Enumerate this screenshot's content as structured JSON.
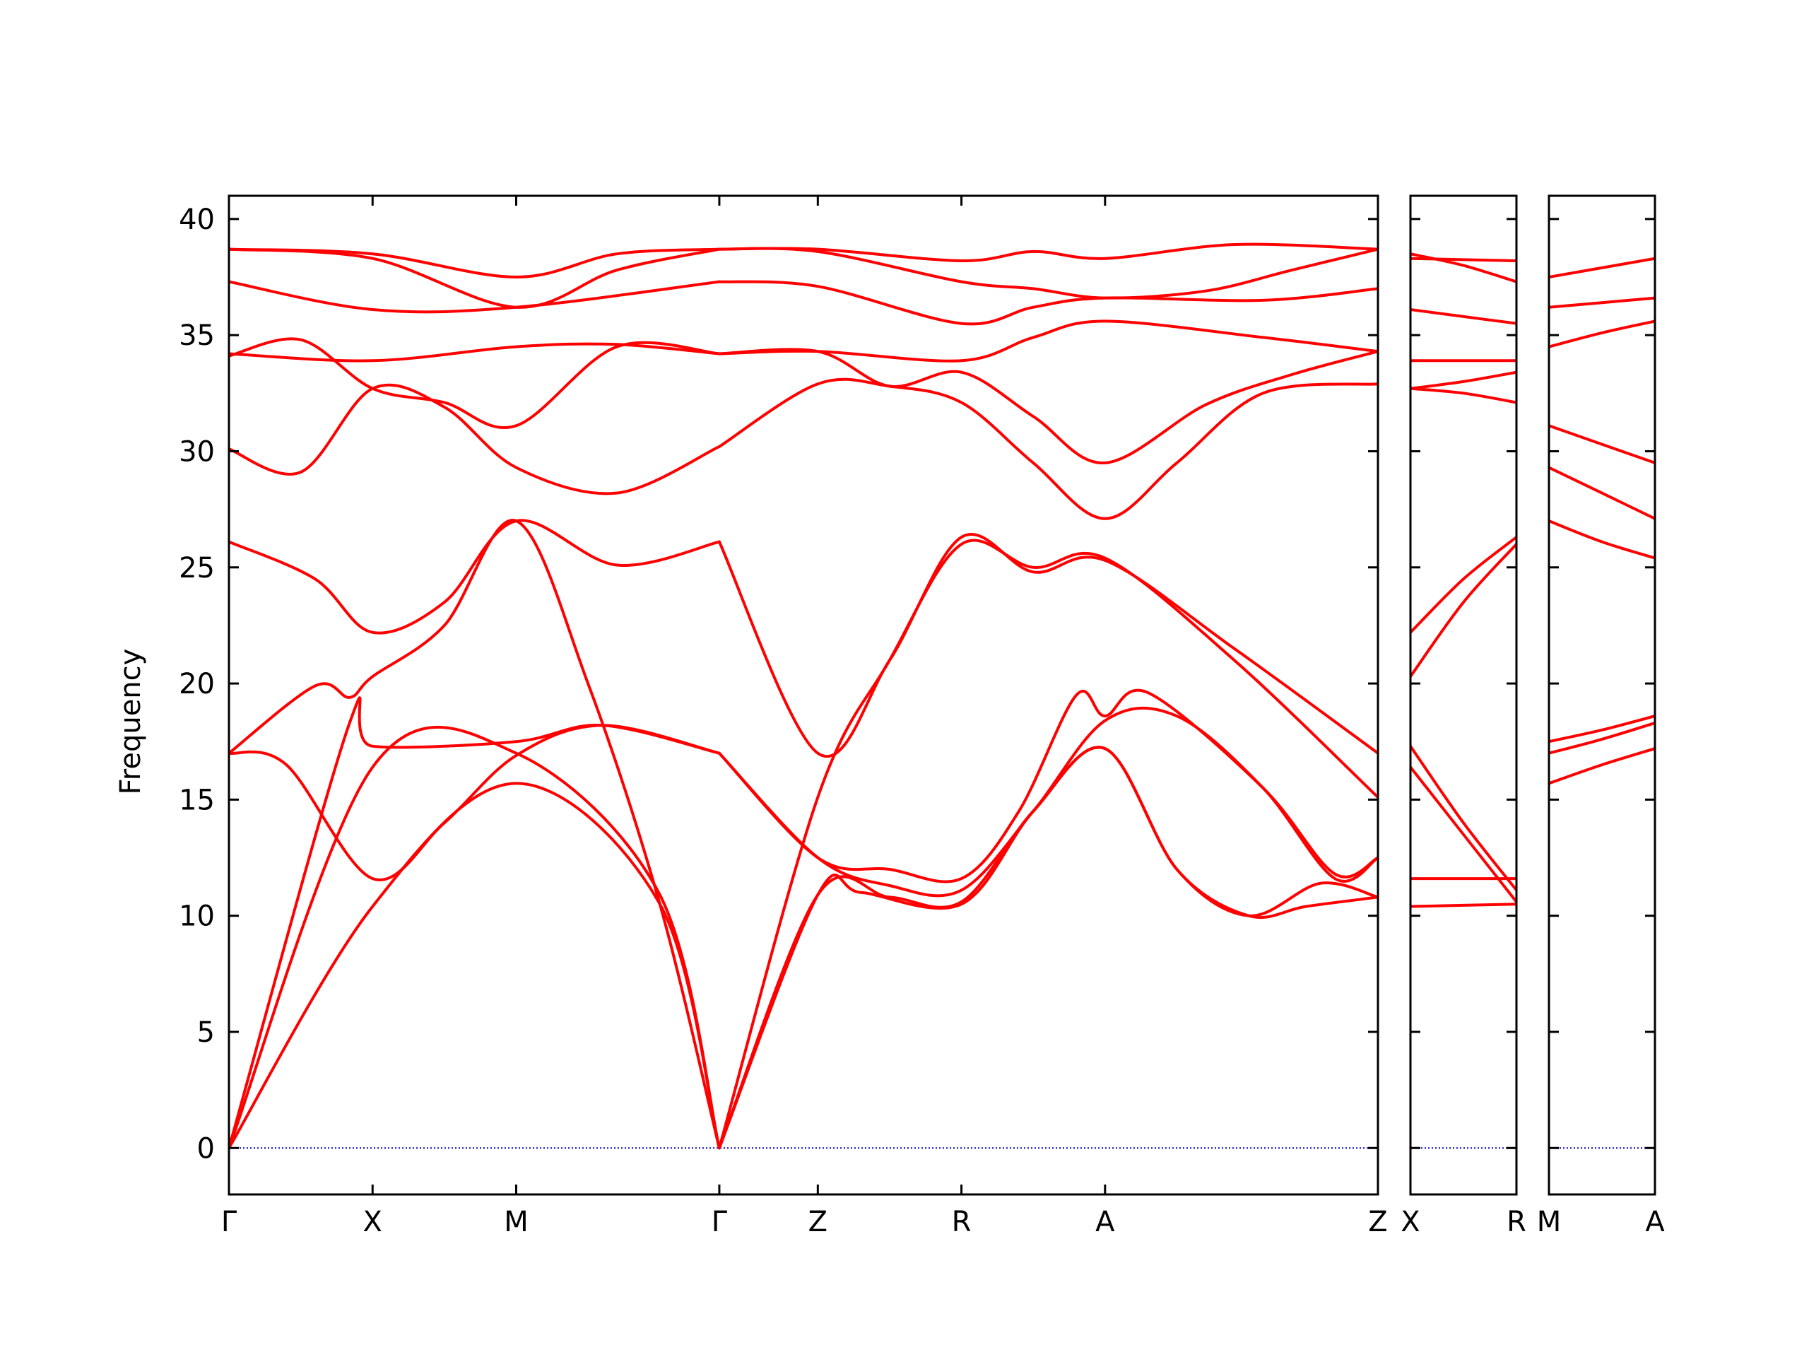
{
  "chart_data": {
    "type": "line",
    "ylabel": "Frequency",
    "ylim": [
      -2,
      41
    ],
    "yticks": [
      0,
      5,
      10,
      15,
      20,
      25,
      30,
      35,
      40
    ],
    "grid": false,
    "legend": "none",
    "colors": {
      "bands": "#ff0000",
      "zero_line": "#0000cc",
      "axes": "#000000"
    },
    "segment_labels": [
      {
        "labels": [
          "Γ",
          "X",
          "M",
          "Γ",
          "Z",
          "R",
          "A",
          "Z"
        ],
        "x": [
          0,
          0.5,
          1.0,
          1.7071,
          2.05,
          2.55,
          3.05,
          4.0
        ]
      },
      {
        "labels": [
          "X",
          "R"
        ],
        "x": [
          0,
          0.35
        ]
      },
      {
        "labels": [
          "M",
          "A"
        ],
        "x": [
          0,
          0.35
        ]
      }
    ],
    "series": [
      {
        "panel": 0,
        "points": [
          [
            0,
            0
          ],
          [
            0.5,
            10.4
          ],
          [
            1.0,
            15.7
          ],
          [
            1.5,
            10.5
          ],
          [
            1.7071,
            0
          ]
        ]
      },
      {
        "panel": 0,
        "points": [
          [
            0,
            0
          ],
          [
            0.5,
            16.4
          ],
          [
            1.0,
            17.0
          ],
          [
            1.5,
            10.9
          ],
          [
            1.7071,
            0
          ]
        ]
      },
      {
        "panel": 0,
        "points": [
          [
            0,
            0
          ],
          [
            0.42,
            18.3
          ],
          [
            0.5,
            17.3
          ],
          [
            1.0,
            17.5
          ],
          [
            1.3,
            18.2
          ],
          [
            1.7071,
            17.0
          ]
        ]
      },
      {
        "panel": 0,
        "points": [
          [
            0,
            17.0
          ],
          [
            0.2,
            16.5
          ],
          [
            0.5,
            11.6
          ],
          [
            0.75,
            14.0
          ],
          [
            1.0,
            16.9
          ],
          [
            1.3,
            18.2
          ],
          [
            1.7071,
            17.0
          ]
        ]
      },
      {
        "panel": 0,
        "points": [
          [
            0,
            17.0
          ],
          [
            0.3,
            19.9
          ],
          [
            0.42,
            19.4
          ],
          [
            0.5,
            20.3
          ],
          [
            0.75,
            22.5
          ],
          [
            1.0,
            27.0
          ],
          [
            1.25,
            20.0
          ],
          [
            1.5,
            10.5
          ],
          [
            1.7071,
            0
          ]
        ]
      },
      {
        "panel": 0,
        "points": [
          [
            0,
            26.1
          ],
          [
            0.3,
            24.5
          ],
          [
            0.5,
            22.2
          ],
          [
            0.75,
            23.5
          ],
          [
            1.0,
            27.0
          ],
          [
            1.35,
            25.1
          ],
          [
            1.7071,
            26.1
          ]
        ]
      },
      {
        "panel": 0,
        "points": [
          [
            0,
            30.1
          ],
          [
            0.25,
            29.1
          ],
          [
            0.5,
            32.7
          ],
          [
            0.75,
            31.9
          ],
          [
            1.0,
            29.3
          ],
          [
            1.35,
            28.2
          ],
          [
            1.7071,
            30.2
          ]
        ]
      },
      {
        "panel": 0,
        "points": [
          [
            0,
            34.1
          ],
          [
            0.25,
            34.8
          ],
          [
            0.5,
            32.7
          ],
          [
            0.75,
            32.1
          ],
          [
            1.0,
            31.1
          ],
          [
            1.35,
            34.5
          ],
          [
            1.7071,
            34.2
          ]
        ]
      },
      {
        "panel": 0,
        "points": [
          [
            0,
            34.2
          ],
          [
            0.5,
            33.9
          ],
          [
            1.0,
            34.5
          ],
          [
            1.35,
            34.6
          ],
          [
            1.7071,
            34.2
          ]
        ]
      },
      {
        "panel": 0,
        "points": [
          [
            0,
            37.3
          ],
          [
            0.5,
            36.1
          ],
          [
            1.0,
            36.2
          ],
          [
            1.7071,
            37.3
          ]
        ]
      },
      {
        "panel": 0,
        "points": [
          [
            0,
            38.7
          ],
          [
            0.5,
            38.3
          ],
          [
            1.0,
            36.2
          ],
          [
            1.35,
            37.8
          ],
          [
            1.7071,
            38.7
          ]
        ]
      },
      {
        "panel": 0,
        "points": [
          [
            0,
            38.7
          ],
          [
            0.5,
            38.5
          ],
          [
            1.0,
            37.5
          ],
          [
            1.35,
            38.5
          ],
          [
            1.7071,
            38.7
          ]
        ]
      },
      {
        "panel": 0,
        "points": [
          [
            1.7071,
            0
          ],
          [
            2.05,
            10.9
          ],
          [
            2.2,
            11.0
          ],
          [
            2.55,
            10.5
          ],
          [
            2.8,
            14.5
          ],
          [
            3.05,
            17.2
          ],
          [
            3.3,
            12.0
          ],
          [
            3.55,
            10.0
          ],
          [
            3.75,
            10.4
          ],
          [
            4.0,
            10.8
          ]
        ]
      },
      {
        "panel": 0,
        "points": [
          [
            1.7071,
            0
          ],
          [
            2.05,
            10.9
          ],
          [
            2.3,
            10.8
          ],
          [
            2.55,
            10.6
          ],
          [
            2.8,
            14.5
          ],
          [
            3.05,
            17.2
          ],
          [
            3.3,
            12.0
          ],
          [
            3.55,
            10.0
          ],
          [
            3.8,
            11.4
          ],
          [
            4.0,
            10.8
          ]
        ]
      },
      {
        "panel": 0,
        "points": [
          [
            1.7071,
            0
          ],
          [
            2.05,
            15.1
          ],
          [
            2.3,
            21.0
          ],
          [
            2.55,
            26.0
          ],
          [
            2.8,
            25.0
          ],
          [
            3.05,
            25.4
          ],
          [
            3.5,
            21.0
          ],
          [
            4.0,
            15.1
          ]
        ]
      },
      {
        "panel": 0,
        "points": [
          [
            1.7071,
            26.1
          ],
          [
            2.05,
            17.0
          ],
          [
            2.3,
            21.0
          ],
          [
            2.55,
            26.3
          ],
          [
            2.8,
            24.8
          ],
          [
            3.05,
            25.3
          ],
          [
            3.5,
            21.5
          ],
          [
            4.0,
            17.0
          ]
        ]
      },
      {
        "panel": 0,
        "points": [
          [
            1.7071,
            17.0
          ],
          [
            2.05,
            12.5
          ],
          [
            2.3,
            11.3
          ],
          [
            2.55,
            11.1
          ],
          [
            2.8,
            14.5
          ],
          [
            3.05,
            18.4
          ],
          [
            3.3,
            18.6
          ],
          [
            3.6,
            15.5
          ],
          [
            3.85,
            11.6
          ],
          [
            4.0,
            12.5
          ]
        ]
      },
      {
        "panel": 0,
        "points": [
          [
            1.7071,
            17.0
          ],
          [
            2.05,
            12.5
          ],
          [
            2.3,
            12.0
          ],
          [
            2.55,
            11.6
          ],
          [
            2.75,
            14.5
          ],
          [
            2.95,
            19.5
          ],
          [
            3.05,
            18.6
          ],
          [
            3.2,
            19.6
          ],
          [
            3.6,
            15.5
          ],
          [
            3.85,
            11.8
          ],
          [
            4.0,
            12.5
          ]
        ]
      },
      {
        "panel": 0,
        "points": [
          [
            1.7071,
            30.2
          ],
          [
            2.05,
            32.9
          ],
          [
            2.3,
            32.8
          ],
          [
            2.55,
            32.1
          ],
          [
            2.8,
            29.5
          ],
          [
            3.05,
            27.1
          ],
          [
            3.3,
            29.5
          ],
          [
            3.6,
            32.5
          ],
          [
            4.0,
            32.9
          ]
        ]
      },
      {
        "panel": 0,
        "points": [
          [
            1.7071,
            34.2
          ],
          [
            2.05,
            34.3
          ],
          [
            2.3,
            32.8
          ],
          [
            2.55,
            33.4
          ],
          [
            2.8,
            31.5
          ],
          [
            3.05,
            29.5
          ],
          [
            3.4,
            32.0
          ],
          [
            3.7,
            33.3
          ],
          [
            4.0,
            34.3
          ]
        ]
      },
      {
        "panel": 0,
        "points": [
          [
            1.7071,
            34.2
          ],
          [
            2.05,
            34.3
          ],
          [
            2.55,
            33.9
          ],
          [
            2.8,
            34.9
          ],
          [
            3.05,
            35.6
          ],
          [
            3.6,
            34.9
          ],
          [
            4.0,
            34.3
          ]
        ]
      },
      {
        "panel": 0,
        "points": [
          [
            1.7071,
            37.3
          ],
          [
            2.05,
            37.1
          ],
          [
            2.55,
            35.5
          ],
          [
            2.8,
            36.2
          ],
          [
            3.05,
            36.6
          ],
          [
            3.6,
            36.5
          ],
          [
            4.0,
            37.0
          ]
        ]
      },
      {
        "panel": 0,
        "points": [
          [
            1.7071,
            38.7
          ],
          [
            2.05,
            38.6
          ],
          [
            2.55,
            37.3
          ],
          [
            2.8,
            37.0
          ],
          [
            3.05,
            36.6
          ],
          [
            3.4,
            36.9
          ],
          [
            3.7,
            37.8
          ],
          [
            4.0,
            38.7
          ]
        ]
      },
      {
        "panel": 0,
        "points": [
          [
            1.7071,
            38.7
          ],
          [
            2.05,
            38.7
          ],
          [
            2.55,
            38.2
          ],
          [
            2.8,
            38.6
          ],
          [
            3.05,
            38.3
          ],
          [
            3.5,
            38.9
          ],
          [
            4.0,
            38.7
          ]
        ]
      },
      {
        "panel": 1,
        "points": [
          [
            0,
            10.4
          ],
          [
            0.35,
            10.5
          ]
        ]
      },
      {
        "panel": 1,
        "points": [
          [
            0,
            11.6
          ],
          [
            0.35,
            11.6
          ]
        ]
      },
      {
        "panel": 1,
        "points": [
          [
            0,
            16.4
          ],
          [
            0.175,
            13.5
          ],
          [
            0.35,
            10.6
          ]
        ]
      },
      {
        "panel": 1,
        "points": [
          [
            0,
            17.3
          ],
          [
            0.175,
            14.0
          ],
          [
            0.35,
            11.1
          ]
        ]
      },
      {
        "panel": 1,
        "points": [
          [
            0,
            20.3
          ],
          [
            0.175,
            23.5
          ],
          [
            0.35,
            26.0
          ]
        ]
      },
      {
        "panel": 1,
        "points": [
          [
            0,
            22.2
          ],
          [
            0.175,
            24.5
          ],
          [
            0.35,
            26.3
          ]
        ]
      },
      {
        "panel": 1,
        "points": [
          [
            0,
            32.7
          ],
          [
            0.175,
            32.5
          ],
          [
            0.35,
            32.1
          ]
        ]
      },
      {
        "panel": 1,
        "points": [
          [
            0,
            32.7
          ],
          [
            0.175,
            33.0
          ],
          [
            0.35,
            33.4
          ]
        ]
      },
      {
        "panel": 1,
        "points": [
          [
            0,
            33.9
          ],
          [
            0.35,
            33.9
          ]
        ]
      },
      {
        "panel": 1,
        "points": [
          [
            0,
            36.1
          ],
          [
            0.175,
            35.8
          ],
          [
            0.35,
            35.5
          ]
        ]
      },
      {
        "panel": 1,
        "points": [
          [
            0,
            38.3
          ],
          [
            0.35,
            38.2
          ]
        ]
      },
      {
        "panel": 1,
        "points": [
          [
            0,
            38.5
          ],
          [
            0.175,
            38.0
          ],
          [
            0.35,
            37.3
          ]
        ]
      },
      {
        "panel": 2,
        "points": [
          [
            0,
            15.7
          ],
          [
            0.175,
            16.5
          ],
          [
            0.35,
            17.2
          ]
        ]
      },
      {
        "panel": 2,
        "points": [
          [
            0,
            17.0
          ],
          [
            0.175,
            17.6
          ],
          [
            0.35,
            18.3
          ]
        ]
      },
      {
        "panel": 2,
        "points": [
          [
            0,
            17.5
          ],
          [
            0.175,
            18.0
          ],
          [
            0.35,
            18.6
          ]
        ]
      },
      {
        "panel": 2,
        "points": [
          [
            0,
            27.0
          ],
          [
            0.175,
            26.1
          ],
          [
            0.35,
            25.4
          ]
        ]
      },
      {
        "panel": 2,
        "points": [
          [
            0,
            29.3
          ],
          [
            0.175,
            28.2
          ],
          [
            0.35,
            27.1
          ]
        ]
      },
      {
        "panel": 2,
        "points": [
          [
            0,
            31.1
          ],
          [
            0.175,
            30.3
          ],
          [
            0.35,
            29.5
          ]
        ]
      },
      {
        "panel": 2,
        "points": [
          [
            0,
            34.5
          ],
          [
            0.175,
            35.1
          ],
          [
            0.35,
            35.6
          ]
        ]
      },
      {
        "panel": 2,
        "points": [
          [
            0,
            36.2
          ],
          [
            0.175,
            36.4
          ],
          [
            0.35,
            36.6
          ]
        ]
      },
      {
        "panel": 2,
        "points": [
          [
            0,
            37.5
          ],
          [
            0.175,
            37.9
          ],
          [
            0.35,
            38.3
          ]
        ]
      }
    ]
  }
}
